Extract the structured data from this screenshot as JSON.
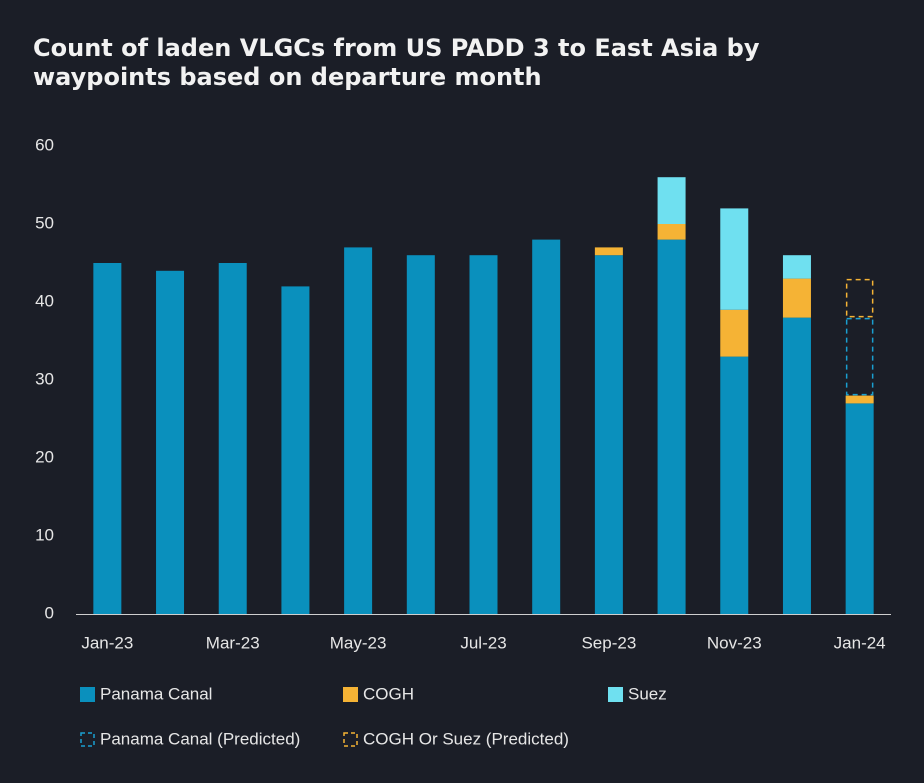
{
  "chart_data": {
    "type": "stacked_bar",
    "title": "Count of laden VLGCs from US PADD 3 to East Asia by waypoints based on departure month",
    "categories": [
      "Jan-23",
      null,
      "Mar-23",
      null,
      "May-23",
      null,
      "Jul-23",
      null,
      "Sep-23",
      null,
      "Nov-23",
      null,
      "Jan-24"
    ],
    "series": [
      {
        "name": "Panama Canal",
        "color": "#0a90bd",
        "dashed": false,
        "values": [
          45,
          44,
          45,
          42,
          47,
          46,
          46,
          48,
          46,
          48,
          33,
          38,
          27
        ]
      },
      {
        "name": "COGH",
        "color": "#f5b335",
        "dashed": false,
        "values": [
          null,
          null,
          null,
          null,
          null,
          null,
          null,
          null,
          1,
          2,
          6,
          5,
          1
        ]
      },
      {
        "name": "Suez",
        "color": "#6fe0f0",
        "dashed": false,
        "values": [
          null,
          null,
          null,
          null,
          null,
          null,
          null,
          null,
          null,
          6,
          13,
          3,
          null
        ]
      },
      {
        "name": "Panama Canal (Predicted)",
        "color": "#1a9fd0",
        "dashed": true,
        "values": [
          null,
          null,
          null,
          null,
          null,
          null,
          null,
          null,
          null,
          null,
          null,
          null,
          10
        ]
      },
      {
        "name": "COGH Or Suez (Predicted)",
        "color": "#f5b335",
        "dashed": true,
        "values": [
          null,
          null,
          null,
          null,
          null,
          null,
          null,
          null,
          null,
          null,
          null,
          null,
          5
        ]
      }
    ],
    "ylim": [
      0,
      60
    ],
    "yticks": [
      0,
      10,
      20,
      30,
      40,
      50,
      60
    ],
    "grid": false
  }
}
